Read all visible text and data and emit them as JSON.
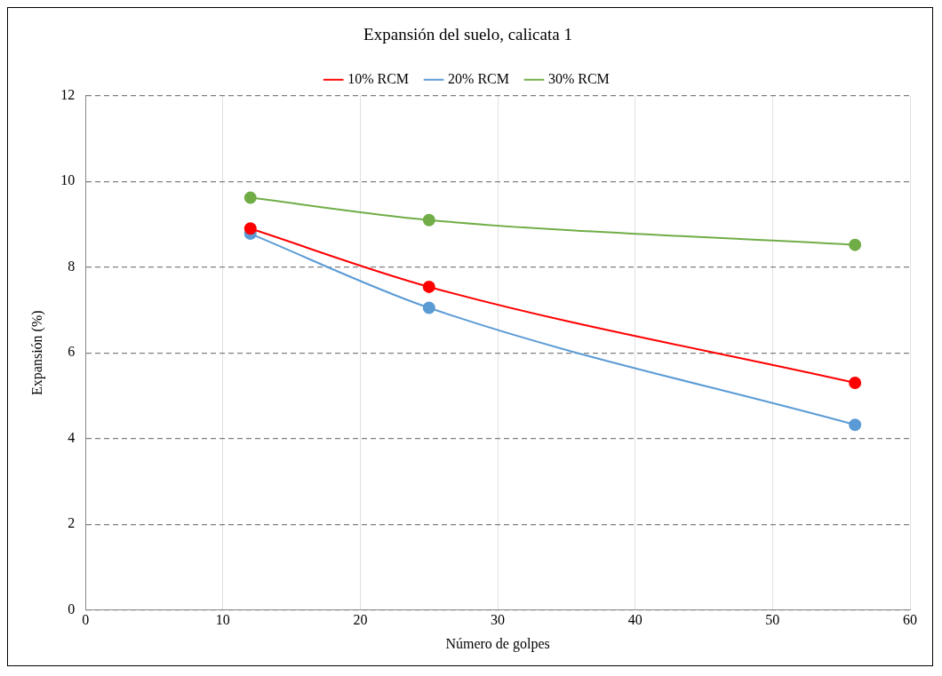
{
  "chart_data": {
    "type": "line",
    "title": "Expansión del suelo, calicata 1",
    "xlabel": "Número de golpes",
    "ylabel": "Expansión (%)",
    "x": [
      12,
      25,
      56
    ],
    "series": [
      {
        "name": "10% RCM",
        "color": "#ff0000",
        "values": [
          8.9,
          7.54,
          5.3
        ]
      },
      {
        "name": "20% RCM",
        "color": "#5b9bd5",
        "values": [
          8.78,
          7.05,
          4.32
        ]
      },
      {
        "name": "30% RCM",
        "color": "#70ad47",
        "values": [
          9.62,
          9.1,
          8.52
        ]
      }
    ],
    "xlim": [
      0,
      60
    ],
    "xticks": [
      0,
      10,
      20,
      30,
      40,
      50,
      60
    ],
    "ylim": [
      0,
      12
    ],
    "yticks": [
      0,
      2,
      4,
      6,
      8,
      10,
      12
    ],
    "grid": true,
    "legend": "top",
    "marker": "circle",
    "line_style": "solid"
  }
}
